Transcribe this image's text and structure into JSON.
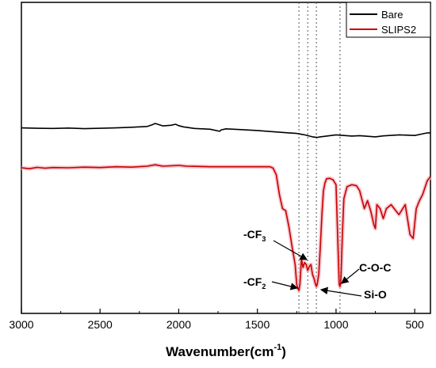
{
  "chart_data": {
    "type": "line",
    "xlabel": "Wavenumber(cm",
    "xlabel_sup": "-1",
    "xlabel_close": ")",
    "ylabel": "",
    "xlim": [
      3000,
      400
    ],
    "ylim": [
      0,
      1
    ],
    "x_ticks": [
      3000,
      2500,
      2000,
      1500,
      1000,
      500
    ],
    "x_tick_labels": [
      "3000",
      "2500",
      "2000",
      "1500",
      "1000",
      "500"
    ],
    "grid": false,
    "legend_position": "top-right",
    "reference_lines": [
      1236,
      1180,
      1125,
      975
    ],
    "series": [
      {
        "name": "Bare",
        "color": "#000000",
        "x": [
          3000,
          2900,
          2800,
          2700,
          2600,
          2500,
          2400,
          2300,
          2200,
          2170,
          2150,
          2100,
          2050,
          2020,
          2000,
          1970,
          1900,
          1800,
          1740,
          1730,
          1700,
          1600,
          1500,
          1400,
          1300,
          1250,
          1200,
          1150,
          1120,
          1100,
          1050,
          1000,
          950,
          900,
          850,
          800,
          750,
          700,
          600,
          500,
          450,
          420,
          400
        ],
        "y": [
          0.835,
          0.833,
          0.832,
          0.834,
          0.831,
          0.833,
          0.835,
          0.838,
          0.842,
          0.85,
          0.857,
          0.845,
          0.848,
          0.853,
          0.846,
          0.84,
          0.832,
          0.828,
          0.818,
          0.825,
          0.83,
          0.826,
          0.822,
          0.816,
          0.81,
          0.807,
          0.8,
          0.79,
          0.787,
          0.79,
          0.795,
          0.8,
          0.797,
          0.794,
          0.796,
          0.793,
          0.79,
          0.795,
          0.8,
          0.797,
          0.805,
          0.81,
          0.81
        ]
      },
      {
        "name": "SLIPS2",
        "color": "#c80000",
        "x": [
          3000,
          2950,
          2900,
          2850,
          2800,
          2700,
          2600,
          2500,
          2400,
          2300,
          2200,
          2150,
          2100,
          2050,
          2000,
          1950,
          1900,
          1800,
          1700,
          1600,
          1500,
          1420,
          1400,
          1380,
          1360,
          1340,
          1320,
          1300,
          1280,
          1260,
          1250,
          1240,
          1236,
          1230,
          1220,
          1210,
          1200,
          1190,
          1180,
          1170,
          1160,
          1150,
          1140,
          1130,
          1125,
          1120,
          1110,
          1100,
          1090,
          1080,
          1070,
          1060,
          1040,
          1020,
          1000,
          990,
          980,
          975,
          970,
          960,
          950,
          930,
          900,
          870,
          850,
          820,
          800,
          780,
          760,
          750,
          740,
          720,
          700,
          680,
          650,
          620,
          600,
          560,
          530,
          510,
          490,
          470,
          450,
          420,
          400
        ],
        "y": [
          0.635,
          0.63,
          0.637,
          0.633,
          0.636,
          0.635,
          0.638,
          0.636,
          0.64,
          0.638,
          0.643,
          0.65,
          0.643,
          0.645,
          0.647,
          0.643,
          0.642,
          0.64,
          0.64,
          0.64,
          0.64,
          0.64,
          0.633,
          0.6,
          0.5,
          0.43,
          0.42,
          0.34,
          0.24,
          0.15,
          0.05,
          0.025,
          0.02,
          0.05,
          0.18,
          0.135,
          0.16,
          0.15,
          0.12,
          0.14,
          0.15,
          0.1,
          0.08,
          0.05,
          0.04,
          0.05,
          0.1,
          0.24,
          0.4,
          0.52,
          0.56,
          0.58,
          0.582,
          0.575,
          0.55,
          0.3,
          0.05,
          0.04,
          0.06,
          0.3,
          0.48,
          0.54,
          0.55,
          0.545,
          0.52,
          0.43,
          0.47,
          0.42,
          0.35,
          0.33,
          0.45,
          0.43,
          0.38,
          0.43,
          0.45,
          0.42,
          0.4,
          0.45,
          0.3,
          0.28,
          0.43,
          0.47,
          0.5,
          0.57,
          0.59
        ]
      }
    ],
    "annotations": [
      {
        "main": "-CF",
        "sub": "3",
        "target_x": 1180,
        "target_y": 0.16
      },
      {
        "main": "-CF",
        "sub": "2",
        "target_x": 1236,
        "target_y": 0.02
      },
      {
        "main": "C-O-C",
        "sub": "",
        "target_x": 975,
        "target_y": 0.06
      },
      {
        "main": "Si-O",
        "sub": "",
        "target_x": 1125,
        "target_y": 0.04
      }
    ]
  }
}
